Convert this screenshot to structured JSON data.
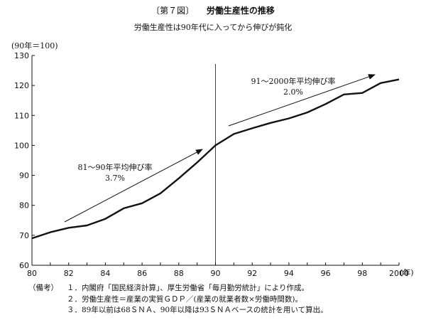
{
  "figure": {
    "number": "〔第７図〕",
    "title": "労働生産性の推移",
    "subtitle": "労働生産性は90年代に入ってから伸びが鈍化"
  },
  "chart_data": {
    "type": "line",
    "y_unit_label": "(90年＝100)",
    "x_unit_label": "(年)",
    "x_tick_labels": [
      "80",
      "82",
      "84",
      "86",
      "88",
      "90",
      "92",
      "94",
      "96",
      "98",
      "2000"
    ],
    "y_tick_labels": [
      "60",
      "70",
      "80",
      "90",
      "100",
      "110",
      "120",
      "130"
    ],
    "xlim": [
      1980,
      2000
    ],
    "ylim": [
      60,
      130
    ],
    "grid": false,
    "x": [
      1980,
      1981,
      1982,
      1983,
      1984,
      1985,
      1986,
      1987,
      1988,
      1989,
      1990,
      1991,
      1992,
      1993,
      1994,
      1995,
      1996,
      1997,
      1998,
      1999,
      2000
    ],
    "series": [
      {
        "values": [
          69,
          71,
          72.5,
          73.3,
          75.5,
          79,
          80.7,
          84,
          89,
          94.3,
          100,
          103.8,
          105.7,
          107.5,
          109,
          111,
          113.8,
          117,
          117.5,
          120.8,
          122
        ]
      }
    ],
    "annotations": [
      {
        "line1": "81～90年平均伸び率",
        "line2": "3.7%"
      },
      {
        "line1": "91～2000年平均伸び率",
        "line2": "2.0%"
      }
    ],
    "reference_line_x": 1990
  },
  "notes": {
    "label": "（備考）",
    "items": [
      "１．内閣府「国民経済計算」、厚生労働省「毎月勤労統計」により作成。",
      "２．労働生産性＝産業の実質ＧＤＰ／(産業の就業者数×労働時間数)。",
      "３．89年以前は68ＳＮＡ、90年以降は93ＳＮＡベースの統計を用いて算出。"
    ]
  }
}
